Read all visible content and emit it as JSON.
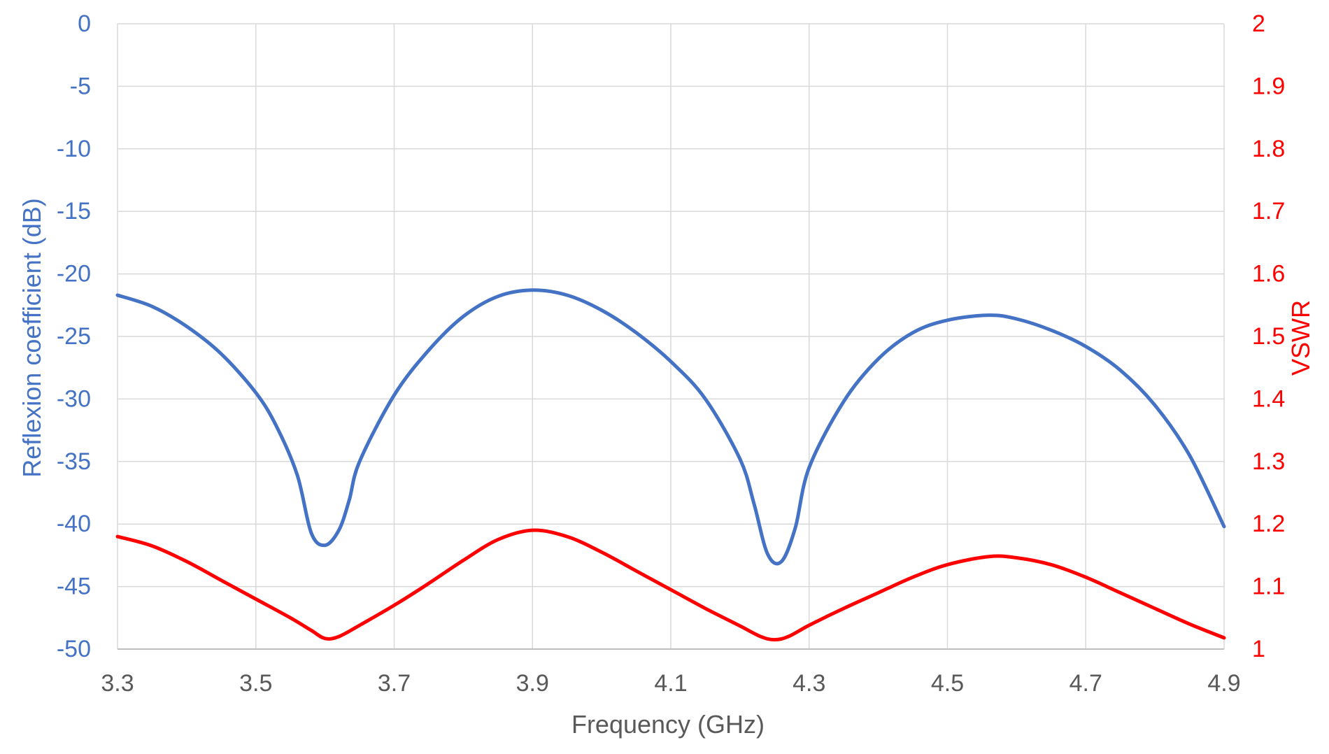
{
  "chart_data": {
    "type": "line",
    "title": "",
    "xlabel": "Frequency (GHz)",
    "ylabel_left": "Reflexion coefficient (dB)",
    "ylabel_right": "VSWR",
    "xlim": [
      3.3,
      4.9
    ],
    "ylim_left": [
      -50,
      0
    ],
    "ylim_right": [
      1,
      2
    ],
    "x_ticks": [
      "3.3",
      "3.5",
      "3.7",
      "3.9",
      "4.1",
      "4.3",
      "4.5",
      "4.7",
      "4.9"
    ],
    "y_ticks_left": [
      "0",
      "-5",
      "-10",
      "-15",
      "-20",
      "-25",
      "-30",
      "-35",
      "-40",
      "-45",
      "-50"
    ],
    "y_ticks_right": [
      "2",
      "1.9",
      "1.8",
      "1.7",
      "1.6",
      "1.5",
      "1.4",
      "1.3",
      "1.2",
      "1.1",
      "1"
    ],
    "grid": true,
    "legend": "none",
    "colors": {
      "left_axis": "#4472C4",
      "right_axis": "#FF0000",
      "grid": "#D9D9D9",
      "x_axis_text": "#595959"
    },
    "series": [
      {
        "axis": "left",
        "color": "#4472C4",
        "x": [
          3.3,
          3.35,
          3.4,
          3.45,
          3.5,
          3.53,
          3.56,
          3.58,
          3.6,
          3.62,
          3.635,
          3.65,
          3.7,
          3.75,
          3.8,
          3.85,
          3.9,
          3.95,
          4.0,
          4.05,
          4.1,
          4.15,
          4.2,
          4.22,
          4.24,
          4.26,
          4.28,
          4.3,
          4.35,
          4.4,
          4.45,
          4.5,
          4.56,
          4.6,
          4.65,
          4.7,
          4.75,
          4.8,
          4.85,
          4.9
        ],
        "y": [
          -21.7,
          -22.6,
          -24.2,
          -26.4,
          -29.5,
          -32.2,
          -36.1,
          -40.7,
          -41.7,
          -40.5,
          -38.1,
          -35.0,
          -29.7,
          -26.1,
          -23.4,
          -21.8,
          -21.3,
          -21.7,
          -22.9,
          -24.7,
          -27.0,
          -30.0,
          -34.8,
          -38.3,
          -42.4,
          -43.0,
          -40.3,
          -35.5,
          -30.2,
          -26.8,
          -24.7,
          -23.7,
          -23.3,
          -23.6,
          -24.5,
          -25.8,
          -27.7,
          -30.5,
          -34.5,
          -40.2
        ]
      },
      {
        "axis": "right",
        "color": "#FF0000",
        "x": [
          3.3,
          3.35,
          3.4,
          3.45,
          3.5,
          3.55,
          3.58,
          3.6,
          3.62,
          3.65,
          3.7,
          3.75,
          3.8,
          3.85,
          3.9,
          3.95,
          4.0,
          4.05,
          4.1,
          4.15,
          4.2,
          4.23,
          4.25,
          4.27,
          4.3,
          4.35,
          4.4,
          4.45,
          4.5,
          4.56,
          4.6,
          4.65,
          4.7,
          4.75,
          4.8,
          4.85,
          4.9
        ],
        "y": [
          1.18,
          1.165,
          1.14,
          1.11,
          1.08,
          1.05,
          1.03,
          1.017,
          1.02,
          1.038,
          1.07,
          1.105,
          1.142,
          1.175,
          1.19,
          1.18,
          1.155,
          1.125,
          1.095,
          1.065,
          1.037,
          1.02,
          1.015,
          1.02,
          1.038,
          1.065,
          1.09,
          1.115,
          1.135,
          1.148,
          1.146,
          1.135,
          1.115,
          1.09,
          1.065,
          1.04,
          1.018
        ]
      }
    ]
  }
}
